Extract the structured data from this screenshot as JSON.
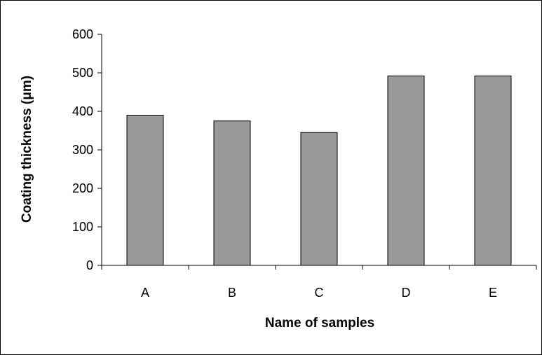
{
  "chart_data": {
    "type": "bar",
    "title": "",
    "xlabel": "Name of samples",
    "ylabel": "Coating thickness (μm)",
    "categories": [
      "A",
      "B",
      "C",
      "D",
      "E"
    ],
    "values": [
      390,
      375,
      345,
      492,
      492
    ],
    "ylim": [
      0,
      600
    ],
    "yticks": [
      0,
      100,
      200,
      300,
      400,
      500,
      600
    ],
    "grid": false,
    "legend": "none",
    "colors": {
      "bar_fill": "#999999",
      "bar_stroke": "#000000",
      "axis": "#000000"
    }
  }
}
